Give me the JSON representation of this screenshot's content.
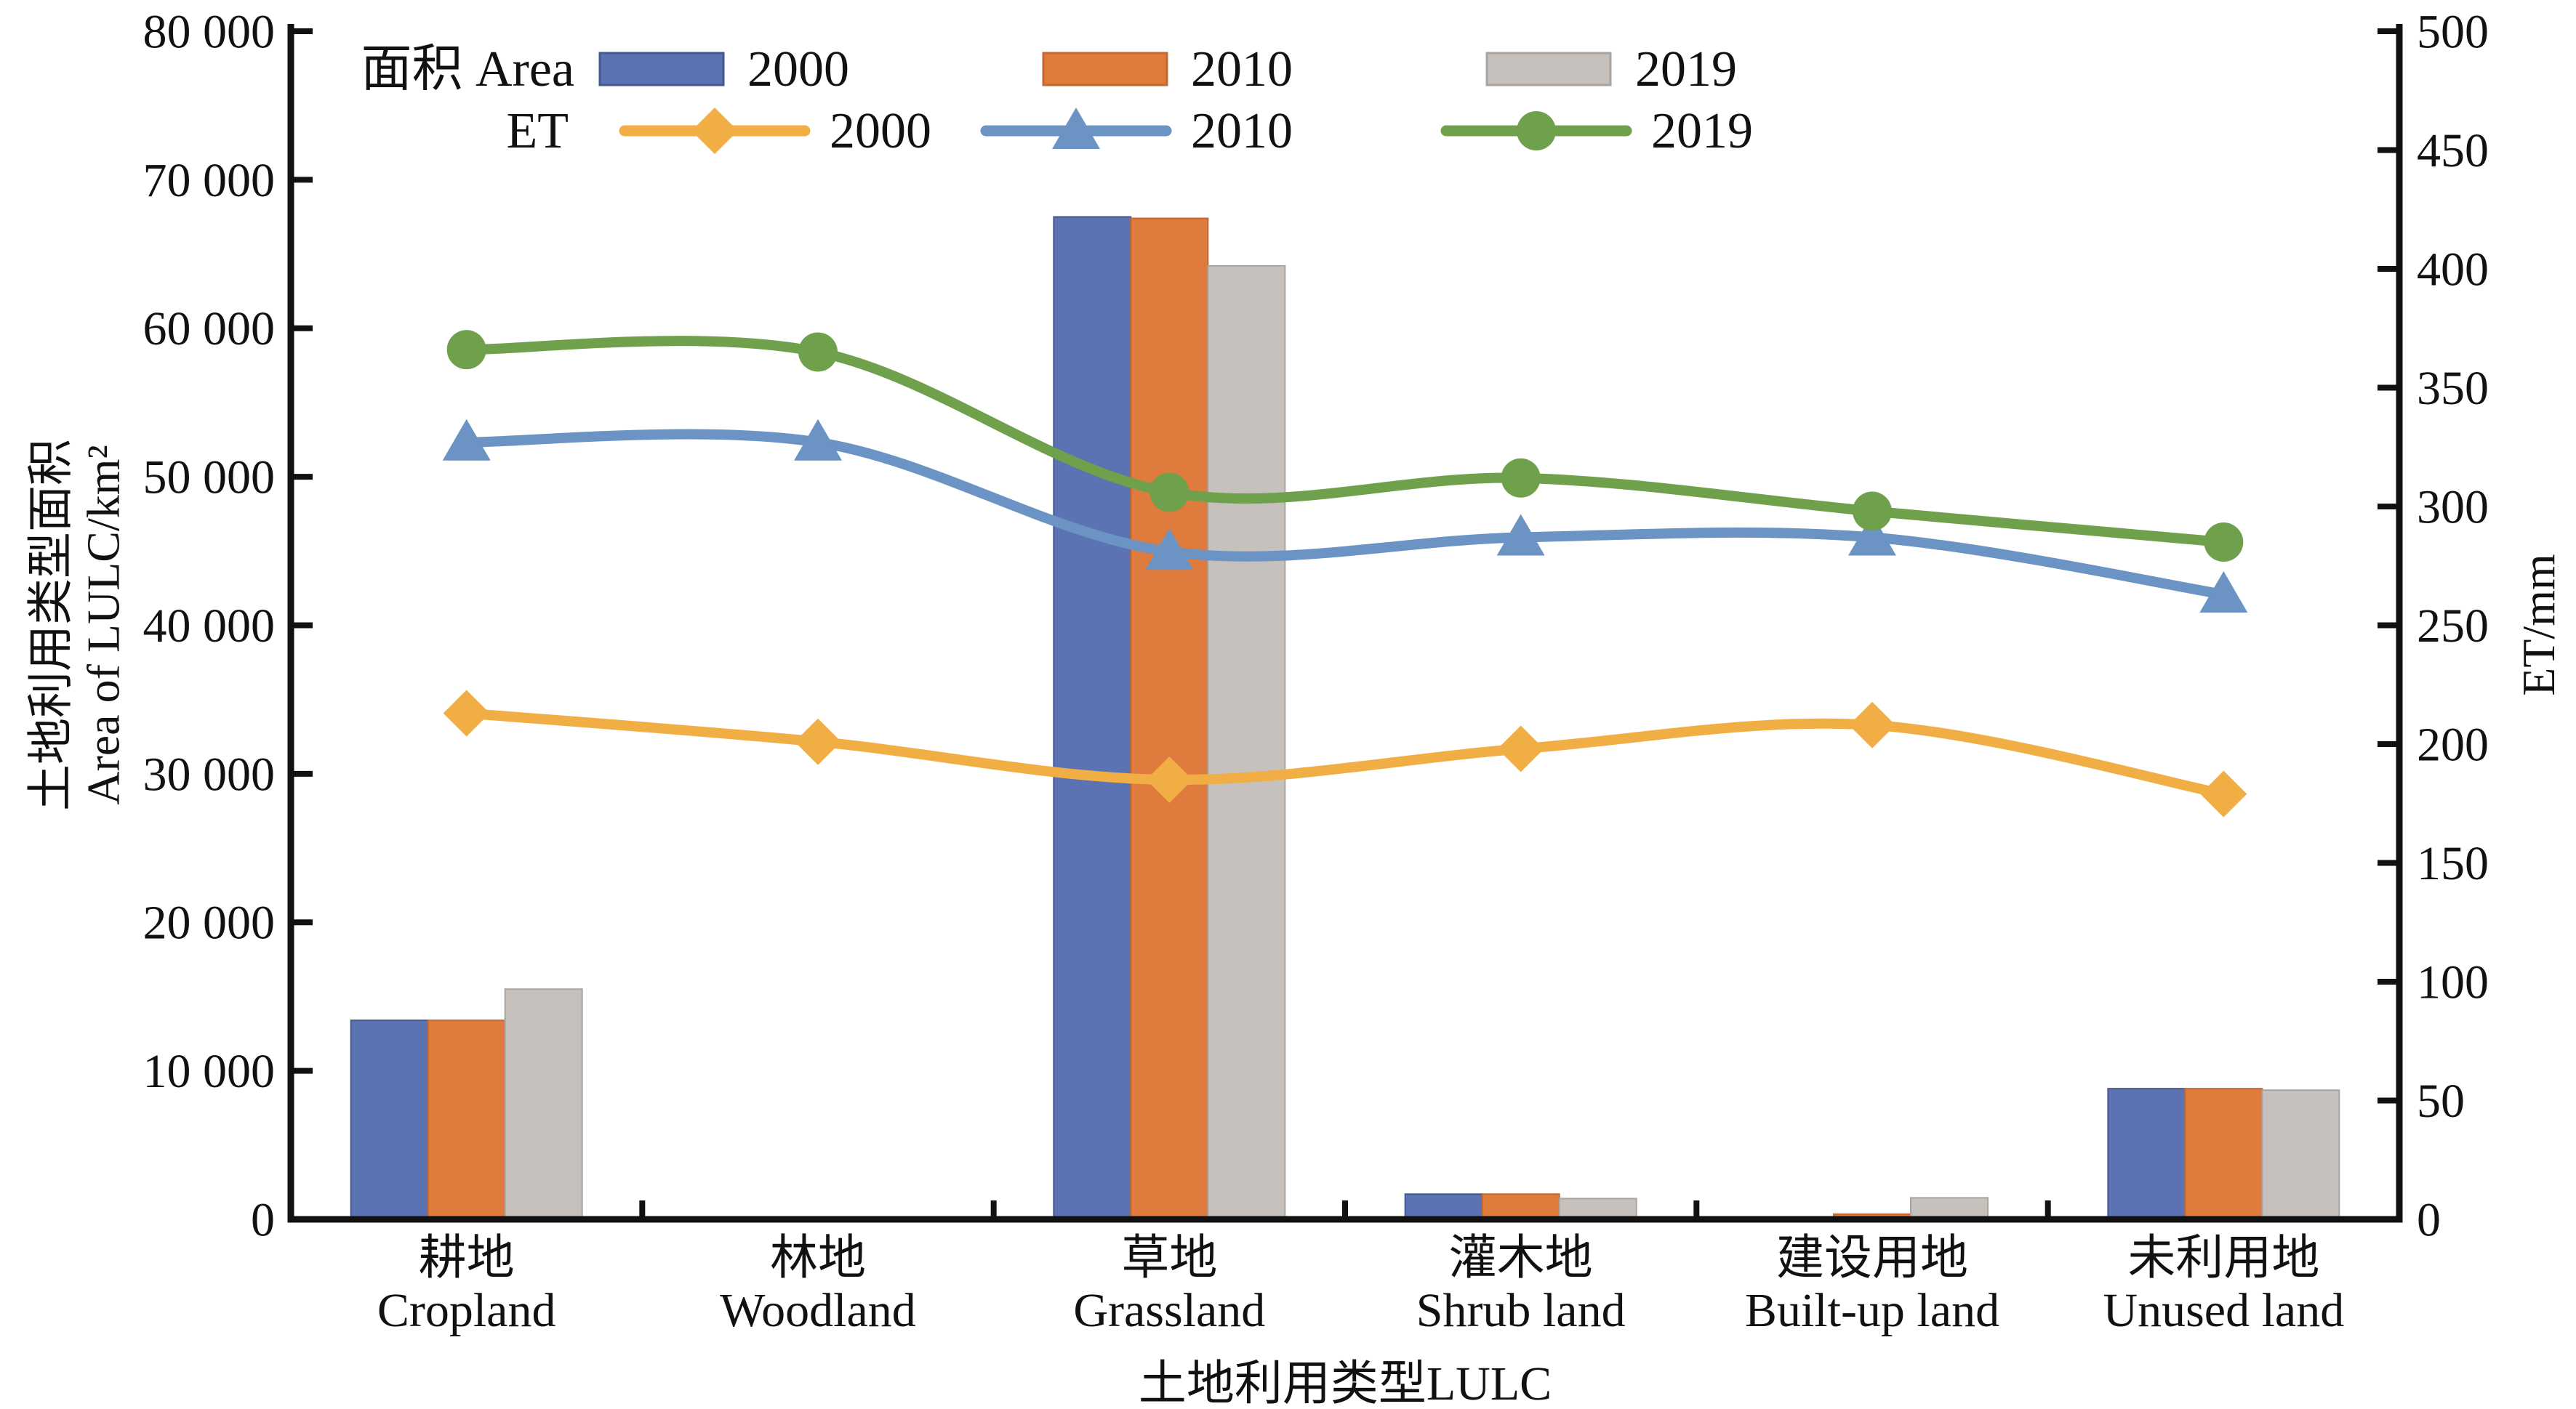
{
  "chart_data": {
    "type": "bar+line",
    "title": "",
    "categories": [
      {
        "zh": "耕地",
        "en": "Cropland"
      },
      {
        "zh": "林地",
        "en": "Woodland"
      },
      {
        "zh": "草地",
        "en": "Grassland"
      },
      {
        "zh": "灌木地",
        "en": "Shrub land"
      },
      {
        "zh": "建设用地",
        "en": "Built-up land"
      },
      {
        "zh": "未利用地",
        "en": "Unused land"
      }
    ],
    "bar_series": [
      {
        "name": "2000",
        "color": "#5B73B2",
        "edge": "#46598f",
        "values": [
          13400,
          0,
          67500,
          1700,
          100,
          8800
        ]
      },
      {
        "name": "2010",
        "color": "#DF7B3C",
        "edge": "#c4682f",
        "values": [
          13400,
          0,
          67400,
          1700,
          350,
          8800
        ]
      },
      {
        "name": "2019",
        "color": "#C6C1BD",
        "edge": "#aaa49f",
        "values": [
          15500,
          0,
          64200,
          1400,
          1450,
          8700
        ]
      }
    ],
    "line_series": [
      {
        "name": "2000",
        "color": "#F1AE44",
        "marker": "diamond",
        "values": [
          213,
          201,
          185,
          198,
          208,
          179
        ]
      },
      {
        "name": "2010",
        "color": "#6B93C3",
        "marker": "triangle",
        "values": [
          327,
          327,
          281,
          287,
          287,
          263
        ]
      },
      {
        "name": "2019",
        "color": "#6FA04C",
        "marker": "circle",
        "values": [
          366,
          365,
          306,
          312,
          298,
          285
        ]
      }
    ],
    "left_axis": {
      "title_zh": "土地利用类型面积",
      "title_en": "Area of LULC/km²",
      "min": 0,
      "max": 80000,
      "step": 10000,
      "tick_labels": [
        "0",
        "10 000",
        "20 000",
        "30 000",
        "40 000",
        "50 000",
        "60 000",
        "70 000",
        "80 000"
      ]
    },
    "right_axis": {
      "title": "ET/mm",
      "min": 0,
      "max": 500,
      "step": 50,
      "tick_labels": [
        "0",
        "50",
        "100",
        "150",
        "200",
        "250",
        "300",
        "350",
        "400",
        "450",
        "500"
      ]
    },
    "x_axis": {
      "title": "土地利用类型LULC"
    },
    "legend": {
      "area_label": "面积 Area",
      "et_label": "ET",
      "bar_years": [
        "2000",
        "2010",
        "2019"
      ],
      "line_years": [
        "2000",
        "2010",
        "2019"
      ]
    },
    "layout": {
      "grid": false,
      "legend_position": "top-left-inside",
      "ylim_left": [
        0,
        80000
      ],
      "ylim_right": [
        0,
        500
      ]
    }
  }
}
